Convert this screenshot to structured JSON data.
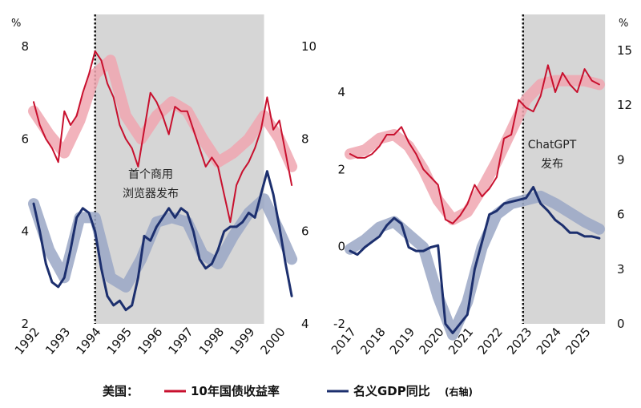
{
  "legend": {
    "prefix": "美国：",
    "yield_label": "10年国债收益率",
    "gdp_label": "名义GDP同比",
    "gdp_suffix": "(右轴)"
  },
  "colors": {
    "yield": "#c8102e",
    "yield_band": "#f0a6b0",
    "gdp": "#1c2f6e",
    "gdp_band": "#9aa7c6",
    "shade": "#d6d6d6"
  },
  "chart_data": [
    {
      "type": "line",
      "panel": "left",
      "x_ticks": [
        "1992",
        "1993",
        "1994",
        "1995",
        "1996",
        "1997",
        "1998",
        "1999",
        "2000"
      ],
      "left_axis": {
        "unit": "%",
        "ticks": [
          "8",
          "6",
          "4",
          "2"
        ],
        "range": [
          2,
          8
        ]
      },
      "right_axis": {
        "ticks": [
          "10",
          "8",
          "6",
          "4"
        ],
        "range": [
          4,
          10
        ]
      },
      "annotation": {
        "lines": [
          "首个商用",
          "浏览器发布"
        ]
      },
      "shaded_range": [
        1994.0,
        1999.5
      ],
      "series": [
        {
          "role": "yield",
          "axis": "left",
          "x": [
            1992.0,
            1992.2,
            1992.4,
            1992.6,
            1992.8,
            1993.0,
            1993.2,
            1993.4,
            1993.6,
            1993.8,
            1994.0,
            1994.2,
            1994.4,
            1994.6,
            1994.8,
            1995.0,
            1995.2,
            1995.4,
            1995.6,
            1995.8,
            1996.0,
            1996.2,
            1996.4,
            1996.6,
            1996.8,
            1997.0,
            1997.2,
            1997.4,
            1997.6,
            1997.8,
            1998.0,
            1998.2,
            1998.4,
            1998.6,
            1998.8,
            1999.0,
            1999.2,
            1999.4,
            1999.6,
            1999.8,
            2000.0,
            2000.2,
            2000.4
          ],
          "values": [
            6.8,
            6.3,
            6.0,
            5.8,
            5.5,
            6.6,
            6.3,
            6.5,
            7.0,
            7.4,
            7.9,
            7.7,
            7.2,
            6.9,
            6.3,
            6.0,
            5.8,
            5.4,
            6.2,
            7.0,
            6.8,
            6.5,
            6.1,
            6.7,
            6.6,
            6.6,
            6.2,
            5.8,
            5.4,
            5.6,
            5.4,
            4.8,
            4.2,
            5.0,
            5.3,
            5.5,
            5.8,
            6.2,
            6.9,
            6.2,
            6.4,
            5.7,
            5.0
          ]
        },
        {
          "role": "yield_trend",
          "axis": "left",
          "x": [
            1992.0,
            1992.5,
            1993.0,
            1993.5,
            1994.0,
            1994.5,
            1995.0,
            1995.5,
            1996.0,
            1996.5,
            1997.0,
            1997.5,
            1998.0,
            1998.5,
            1999.0,
            1999.5,
            2000.0,
            2000.4
          ],
          "values": [
            6.6,
            6.1,
            5.7,
            6.4,
            7.4,
            7.7,
            6.5,
            6.0,
            6.5,
            6.8,
            6.6,
            6.0,
            5.5,
            5.7,
            6.0,
            6.5,
            6.0,
            5.4
          ]
        },
        {
          "role": "gdp",
          "axis": "right",
          "x": [
            1992.0,
            1992.2,
            1992.4,
            1992.6,
            1992.8,
            1993.0,
            1993.2,
            1993.4,
            1993.6,
            1993.8,
            1994.0,
            1994.2,
            1994.4,
            1994.6,
            1994.8,
            1995.0,
            1995.2,
            1995.4,
            1995.6,
            1995.8,
            1996.0,
            1996.2,
            1996.4,
            1996.6,
            1996.8,
            1997.0,
            1997.2,
            1997.4,
            1997.6,
            1997.8,
            1998.0,
            1998.2,
            1998.4,
            1998.6,
            1998.8,
            1999.0,
            1999.2,
            1999.4,
            1999.6,
            1999.8,
            2000.0,
            2000.2,
            2000.4
          ],
          "values": [
            6.6,
            6.0,
            5.3,
            4.9,
            4.8,
            5.0,
            5.6,
            6.3,
            6.5,
            6.4,
            6.0,
            5.2,
            4.6,
            4.4,
            4.5,
            4.3,
            4.4,
            5.0,
            5.9,
            5.8,
            6.1,
            6.3,
            6.5,
            6.3,
            6.5,
            6.4,
            6.0,
            5.4,
            5.2,
            5.3,
            5.6,
            6.0,
            6.1,
            6.1,
            6.2,
            6.4,
            6.3,
            6.8,
            7.3,
            6.8,
            6.1,
            5.3,
            4.6
          ]
        },
        {
          "role": "gdp_trend",
          "axis": "right",
          "x": [
            1992.0,
            1992.5,
            1993.0,
            1993.5,
            1994.0,
            1994.5,
            1995.0,
            1995.5,
            1996.0,
            1996.5,
            1997.0,
            1997.5,
            1998.0,
            1998.5,
            1999.0,
            1999.5,
            2000.0,
            2000.4
          ],
          "values": [
            6.6,
            5.6,
            5.0,
            6.3,
            6.3,
            5.0,
            4.8,
            5.4,
            6.2,
            6.3,
            6.2,
            5.5,
            5.3,
            5.9,
            6.4,
            6.7,
            6.0,
            5.4
          ]
        }
      ]
    },
    {
      "type": "line",
      "panel": "right",
      "x_ticks": [
        "2017",
        "2018",
        "2019",
        "2020",
        "2021",
        "2022",
        "2023",
        "2024",
        "2025"
      ],
      "left_axis": {
        "ticks": [
          "4",
          "2",
          "0",
          "-2"
        ],
        "range": [
          -2,
          6
        ]
      },
      "right_axis": {
        "unit": "%",
        "ticks": [
          "15",
          "12",
          "9",
          "6",
          "3",
          "0"
        ],
        "range": [
          0,
          16
        ]
      },
      "annotation": {
        "lines": [
          "ChatGPT",
          "发布"
        ]
      },
      "shaded_range": [
        2022.9,
        2025.7
      ],
      "series": [
        {
          "role": "yield",
          "axis": "left",
          "x": [
            2017.0,
            2017.25,
            2017.5,
            2017.75,
            2018.0,
            2018.25,
            2018.5,
            2018.75,
            2019.0,
            2019.25,
            2019.5,
            2019.75,
            2020.0,
            2020.25,
            2020.5,
            2020.75,
            2021.0,
            2021.25,
            2021.5,
            2021.75,
            2022.0,
            2022.25,
            2022.5,
            2022.75,
            2023.0,
            2023.25,
            2023.5,
            2023.75,
            2024.0,
            2024.25,
            2024.5,
            2024.75,
            2025.0,
            2025.25,
            2025.5
          ],
          "values": [
            2.4,
            2.3,
            2.3,
            2.4,
            2.6,
            2.9,
            2.9,
            3.1,
            2.7,
            2.4,
            2.0,
            1.8,
            1.6,
            0.7,
            0.6,
            0.8,
            1.1,
            1.6,
            1.3,
            1.5,
            1.8,
            2.8,
            2.9,
            3.8,
            3.6,
            3.5,
            3.9,
            4.7,
            4.0,
            4.5,
            4.2,
            4.0,
            4.6,
            4.3,
            4.2
          ]
        },
        {
          "role": "yield_trend",
          "axis": "left",
          "x": [
            2017.0,
            2017.5,
            2018.0,
            2018.5,
            2019.0,
            2019.5,
            2020.0,
            2020.5,
            2021.0,
            2021.5,
            2022.0,
            2022.5,
            2023.0,
            2023.5,
            2024.0,
            2024.5,
            2025.0,
            2025.5
          ],
          "values": [
            2.4,
            2.5,
            2.8,
            2.9,
            2.6,
            2.0,
            1.2,
            0.7,
            0.9,
            1.5,
            2.2,
            3.0,
            3.8,
            4.2,
            4.3,
            4.3,
            4.3,
            4.2
          ]
        },
        {
          "role": "gdp",
          "axis": "right",
          "x": [
            2017.0,
            2017.25,
            2017.5,
            2017.75,
            2018.0,
            2018.25,
            2018.5,
            2018.75,
            2019.0,
            2019.25,
            2019.5,
            2019.75,
            2020.0,
            2020.25,
            2020.5,
            2020.75,
            2021.0,
            2021.25,
            2021.5,
            2021.75,
            2022.0,
            2022.25,
            2022.5,
            2022.75,
            2023.0,
            2023.25,
            2023.5,
            2023.75,
            2024.0,
            2024.25,
            2024.5,
            2024.75,
            2025.0,
            2025.25,
            2025.5
          ],
          "values": [
            4.0,
            3.8,
            4.2,
            4.5,
            4.8,
            5.4,
            5.8,
            5.5,
            4.2,
            4.0,
            4.0,
            4.2,
            4.3,
            0.0,
            -0.5,
            0.0,
            0.5,
            3.0,
            4.5,
            6.0,
            6.2,
            6.6,
            6.7,
            6.8,
            6.9,
            7.5,
            6.6,
            6.2,
            5.7,
            5.4,
            5.0,
            5.0,
            4.8,
            4.8,
            4.7
          ]
        },
        {
          "role": "gdp_trend",
          "axis": "right",
          "x": [
            2017.0,
            2017.5,
            2018.0,
            2018.5,
            2019.0,
            2019.5,
            2020.0,
            2020.5,
            2021.0,
            2021.5,
            2022.0,
            2022.5,
            2023.0,
            2023.5,
            2024.0,
            2024.5,
            2025.0,
            2025.5
          ],
          "values": [
            4.1,
            4.6,
            5.3,
            5.6,
            4.9,
            4.2,
            1.5,
            -0.6,
            1.2,
            4.2,
            6.0,
            6.6,
            6.8,
            7.0,
            6.6,
            6.1,
            5.6,
            5.2
          ]
        }
      ]
    }
  ]
}
